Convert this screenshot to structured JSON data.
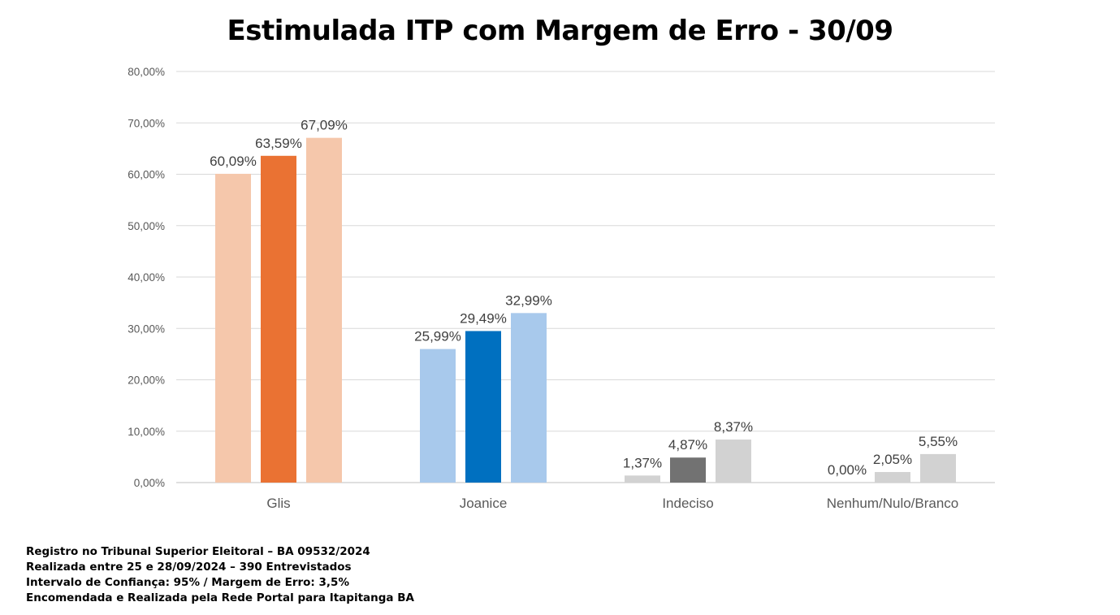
{
  "chart_data": {
    "type": "bar",
    "title": "Estimulada ITP com Margem de Erro - 30/09",
    "categories": [
      "Glis",
      "Joanice",
      "Indeciso",
      "Nenhum/Nulo/Branco"
    ],
    "series": [
      {
        "values": [
          60.09,
          25.99,
          1.37,
          0.0
        ],
        "labels": [
          "60,09%",
          "25,99%",
          "1,37%",
          "0,00%"
        ]
      },
      {
        "values": [
          63.59,
          29.49,
          4.87,
          2.05
        ],
        "labels": [
          "63,59%",
          "29,49%",
          "4,87%",
          "2,05%"
        ]
      },
      {
        "values": [
          67.09,
          32.99,
          8.37,
          5.55
        ],
        "labels": [
          "67,09%",
          "32,99%",
          "8,37%",
          "5,55%"
        ]
      }
    ],
    "colors": [
      [
        "#f5c7ab",
        "#ea7233",
        "#f5c7ab"
      ],
      [
        "#a8c9ec",
        "#0070c0",
        "#a8c9ec"
      ],
      [
        "#d2d2d2",
        "#727272",
        "#d2d2d2"
      ],
      [
        "#d2d2d2",
        "#d2d2d2",
        "#d2d2d2"
      ]
    ],
    "ylim": [
      0,
      80
    ],
    "yticks": [
      0,
      10,
      20,
      30,
      40,
      50,
      60,
      70,
      80
    ],
    "ytick_labels": [
      "0,00%",
      "10,00%",
      "20,00%",
      "30,00%",
      "40,00%",
      "50,00%",
      "60,00%",
      "70,00%",
      "80,00%"
    ],
    "grid": true,
    "xlabel": "",
    "ylabel": ""
  },
  "footer": [
    "Registro no Tribunal Superior Eleitoral – BA 09532/2024",
    "Realizada entre 25 e 28/09/2024 – 390 Entrevistados",
    "Intervalo de Confiança: 95% / Margem de Erro: 3,5%",
    "Encomendada e Realizada pela Rede Portal para Itapitanga BA"
  ]
}
